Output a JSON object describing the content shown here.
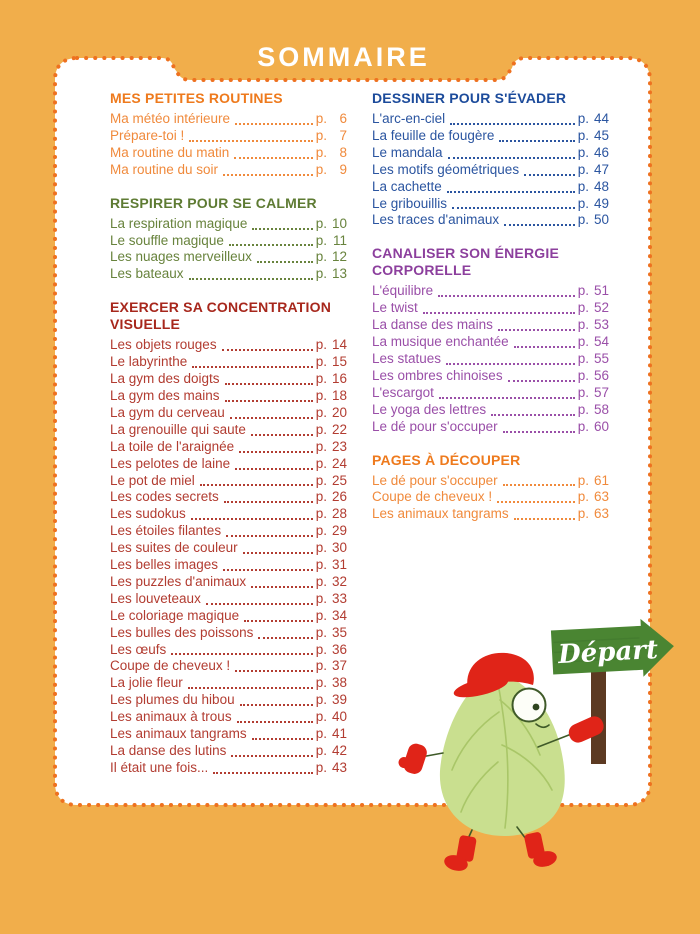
{
  "title": "SOMMAIRE",
  "page_prefix": "p.",
  "theme": {
    "background": "#F1AE4B",
    "card": "#FFFFFF",
    "border_dots": "#EE7120",
    "title_color": "#FFFFFF"
  },
  "columns": [
    {
      "sections": [
        {
          "id": "mes-petites-routines",
          "heading": "MES PETITES ROUTINES",
          "heading_color": "#EE7A1D",
          "item_color": "#F08A3C",
          "items": [
            {
              "label": "Ma météo intérieure",
              "page": "6"
            },
            {
              "label": "Prépare-toi !",
              "page": "7"
            },
            {
              "label": "Ma routine du matin",
              "page": "8"
            },
            {
              "label": "Ma routine du soir",
              "page": "9"
            }
          ]
        },
        {
          "id": "respirer-pour-se-calmer",
          "heading": "RESPIRER POUR SE CALMER",
          "heading_color": "#5E7B33",
          "item_color": "#68833D",
          "items": [
            {
              "label": "La respiration magique",
              "page": "10"
            },
            {
              "label": "Le souffle magique",
              "page": "11"
            },
            {
              "label": "Les nuages merveilleux",
              "page": "12"
            },
            {
              "label": "Les bateaux",
              "page": "13"
            }
          ]
        },
        {
          "id": "exercer-sa-concentration-visuelle",
          "heading": "EXERCER SA CONCENTRATION VISUELLE",
          "heading_color": "#A7271C",
          "item_color": "#B23C31",
          "items": [
            {
              "label": "Les objets rouges",
              "page": "14"
            },
            {
              "label": "Le labyrinthe",
              "page": "15"
            },
            {
              "label": "La gym des doigts",
              "page": "16"
            },
            {
              "label": "La gym des mains",
              "page": "18"
            },
            {
              "label": "La gym du cerveau",
              "page": "20"
            },
            {
              "label": "La grenouille qui saute",
              "page": "22"
            },
            {
              "label": "La toile de l'araignée",
              "page": "23"
            },
            {
              "label": "Les pelotes de laine",
              "page": "24"
            },
            {
              "label": "Le pot de miel",
              "page": "25"
            },
            {
              "label": "Les codes secrets",
              "page": "26"
            },
            {
              "label": "Les sudokus",
              "page": "28"
            },
            {
              "label": "Les étoiles filantes",
              "page": "29"
            },
            {
              "label": "Les suites de couleur",
              "page": "30"
            },
            {
              "label": "Les belles images",
              "page": "31"
            },
            {
              "label": "Les puzzles d'animaux",
              "page": "32"
            },
            {
              "label": "Les louveteaux",
              "page": "33"
            },
            {
              "label": "Le coloriage magique",
              "page": "34"
            },
            {
              "label": "Les bulles des poissons",
              "page": "35"
            },
            {
              "label": "Les œufs",
              "page": "36"
            },
            {
              "label": "Coupe de cheveux !",
              "page": "37"
            },
            {
              "label": "La jolie fleur",
              "page": "38"
            },
            {
              "label": "Les plumes du hibou",
              "page": "39"
            },
            {
              "label": "Les animaux à trous",
              "page": "40"
            },
            {
              "label": "Les animaux tangrams",
              "page": "41"
            },
            {
              "label": "La danse des lutins",
              "page": "42"
            },
            {
              "label": "Il était une fois...",
              "page": "43"
            }
          ]
        }
      ]
    },
    {
      "sections": [
        {
          "id": "dessiner-pour-sevader",
          "heading": "DESSINER POUR S'ÉVADER",
          "heading_color": "#1C4B9B",
          "item_color": "#2B55A0",
          "items": [
            {
              "label": "L'arc-en-ciel",
              "page": "44"
            },
            {
              "label": "La feuille de fougère",
              "page": "45"
            },
            {
              "label": "Le mandala",
              "page": "46"
            },
            {
              "label": "Les motifs géométriques",
              "page": "47"
            },
            {
              "label": "La cachette",
              "page": "48"
            },
            {
              "label": "Le gribouillis",
              "page": "49"
            },
            {
              "label": "Les traces d'animaux",
              "page": "50"
            }
          ]
        },
        {
          "id": "canaliser-son-energie-corporelle",
          "heading": "CANALISER SON ÉNERGIE CORPORELLE",
          "heading_color": "#8C3F9D",
          "item_color": "#9A4FA8",
          "items": [
            {
              "label": "L'équilibre",
              "page": "51"
            },
            {
              "label": "Le twist",
              "page": "52"
            },
            {
              "label": "La danse des mains",
              "page": "53"
            },
            {
              "label": "La musique enchantée",
              "page": "54"
            },
            {
              "label": "Les statues",
              "page": "55"
            },
            {
              "label": "Les ombres chinoises",
              "page": "56"
            },
            {
              "label": "L'escargot",
              "page": "57"
            },
            {
              "label": "Le yoga des lettres",
              "page": "58"
            },
            {
              "label": "Le dé pour s'occuper",
              "page": "60"
            }
          ]
        },
        {
          "id": "pages-a-decouper",
          "heading": "PAGES À DÉCOUPER",
          "heading_color": "#EE7A1D",
          "item_color": "#F08A3C",
          "items": [
            {
              "label": "Le dé pour s'occuper",
              "page": "61"
            },
            {
              "label": "Coupe de cheveux !",
              "page": "63"
            },
            {
              "label": "Les animaux tangrams",
              "page": "63"
            }
          ]
        }
      ]
    }
  ],
  "character": {
    "name": "pear-mascot",
    "sign_label": "Départ",
    "colors": {
      "body": "#C9DF8F",
      "vein": "#A9C668",
      "outline": "#3F5A28",
      "red": "#E02418",
      "sign_green": "#4A8532",
      "sign_green_dark": "#3E752B",
      "post_brown": "#5C3A22",
      "sign_text": "#FFFFFF"
    }
  }
}
